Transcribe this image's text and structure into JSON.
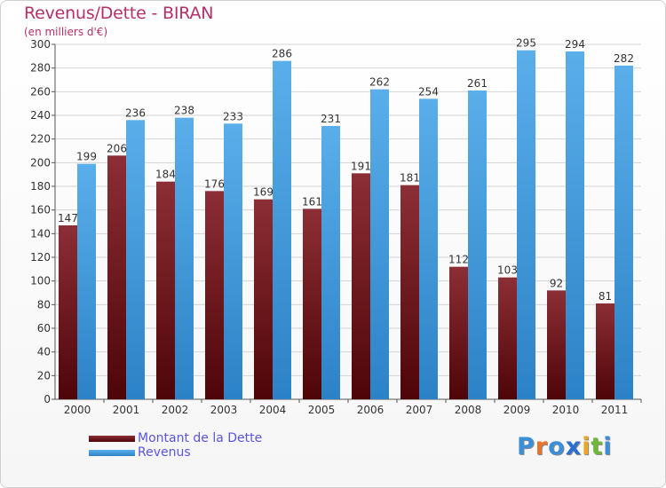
{
  "title": "Revenus/Dette - BIRAN",
  "subtitle": "(en milliers d'€)",
  "colors": {
    "debt_top": "#8c2e35",
    "debt_bottom": "#4e0508",
    "revenue_top": "#5aaeea",
    "revenue_bottom": "#2c82c6",
    "title": "#b5306a",
    "legend_text": "#5a55e0"
  },
  "logo": {
    "letters": [
      "P",
      "r",
      "o",
      "x",
      "i",
      "t",
      "i"
    ],
    "colors": [
      "#3b8fd8",
      "#e8732a",
      "#3b8fd8",
      "#2a6fd0",
      "#e8a92a",
      "#6fb83a",
      "#3b8fd8"
    ]
  },
  "chart_data": {
    "type": "bar",
    "categories": [
      "2000",
      "2001",
      "2002",
      "2003",
      "2004",
      "2005",
      "2006",
      "2007",
      "2008",
      "2009",
      "2010",
      "2011"
    ],
    "series": [
      {
        "name": "Montant de la Dette",
        "values": [
          147,
          206,
          184,
          176,
          169,
          161,
          191,
          181,
          112,
          103,
          92,
          81
        ]
      },
      {
        "name": "Revenus",
        "values": [
          199,
          236,
          238,
          233,
          286,
          231,
          262,
          254,
          261,
          295,
          294,
          282
        ]
      }
    ],
    "ylim": [
      0,
      300
    ],
    "yticks": [
      0,
      20,
      40,
      60,
      80,
      100,
      120,
      140,
      160,
      180,
      200,
      220,
      240,
      260,
      280,
      300
    ],
    "grid": true,
    "legend": "bottom-left"
  }
}
